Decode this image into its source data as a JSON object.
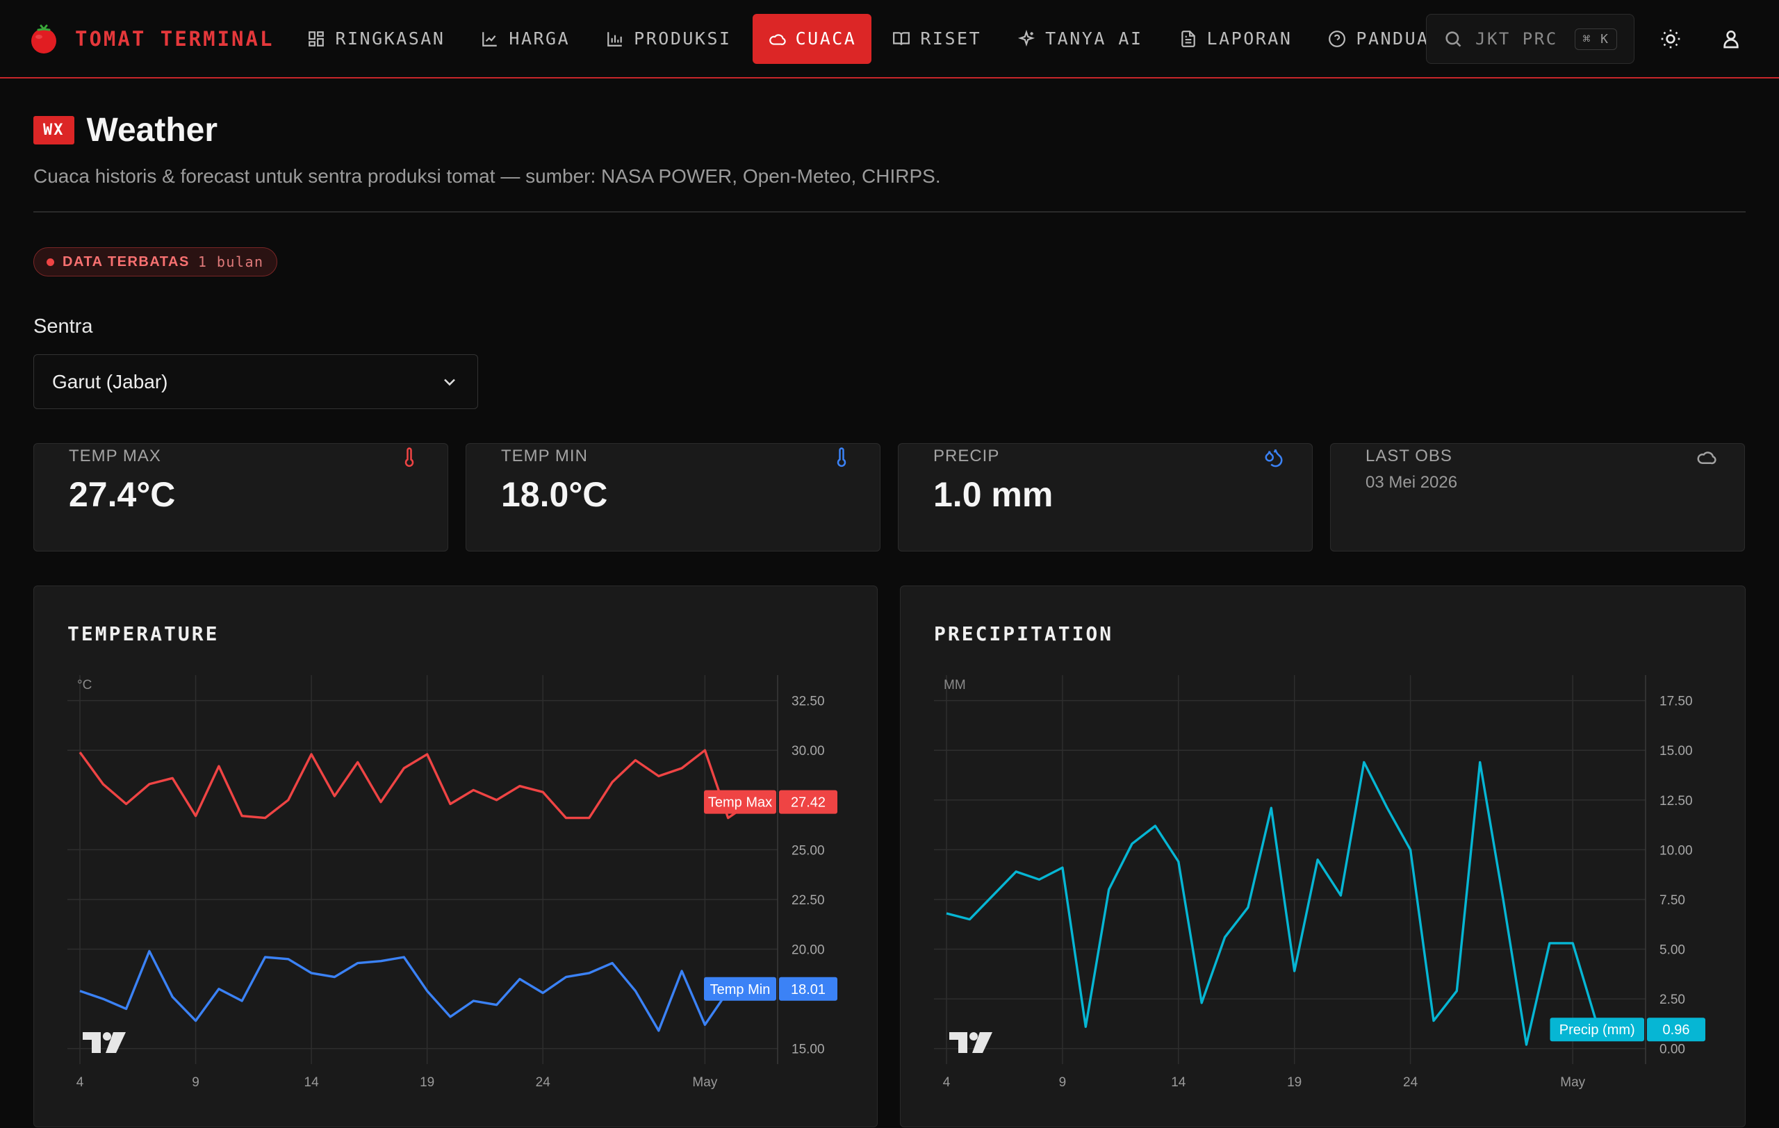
{
  "brand": {
    "name": "TOMAT TERMINAL"
  },
  "nav": [
    {
      "label": "RINGKASAN",
      "icon": "grid-icon"
    },
    {
      "label": "HARGA",
      "icon": "line-chart-icon"
    },
    {
      "label": "PRODUKSI",
      "icon": "bar-chart-icon"
    },
    {
      "label": "CUACA",
      "icon": "cloud-icon",
      "active": true
    },
    {
      "label": "RISET",
      "icon": "book-icon"
    },
    {
      "label": "TANYA AI",
      "icon": "sparkle-icon"
    },
    {
      "label": "LAPORAN",
      "icon": "document-icon"
    },
    {
      "label": "PANDUAN",
      "icon": "help-icon"
    }
  ],
  "search": {
    "text": "JKT PRC",
    "shortcut": "⌘ K"
  },
  "header": {
    "badge": "WX",
    "title": "Weather",
    "subtitle": "Cuaca historis & forecast untuk sentra produksi tomat — sumber: NASA POWER, Open-Meteo, CHIRPS."
  },
  "limit_badge": {
    "label": "DATA TERBATAS",
    "value": "1 bulan"
  },
  "sentra": {
    "label": "Sentra",
    "selected": "Garut (Jabar)"
  },
  "stats": [
    {
      "label": "TEMP MAX",
      "value": "27.4°C",
      "icon": "thermometer-icon",
      "color": "#ef4444"
    },
    {
      "label": "TEMP MIN",
      "value": "18.0°C",
      "icon": "thermometer-icon",
      "color": "#3b82f6"
    },
    {
      "label": "PRECIP",
      "value": "1.0 mm",
      "icon": "droplets-icon",
      "color": "#3b82f6"
    },
    {
      "label": "LAST OBS",
      "value": "03 Mei 2026",
      "icon": "cloud-icon",
      "color": "#a3a3a3"
    }
  ],
  "chart_data": [
    {
      "type": "line",
      "title": "TEMPERATURE",
      "ylabel": "°C",
      "ylim": [
        14.5,
        33.5
      ],
      "yticks": [
        "15.00",
        "20.00",
        "22.50",
        "25.00",
        "30.00",
        "32.50"
      ],
      "ytick_values": [
        15,
        20,
        22.5,
        25,
        30,
        32.5
      ],
      "xticks": [
        "4",
        "9",
        "14",
        "19",
        "24",
        "May"
      ],
      "xtick_days": [
        4,
        9,
        14,
        19,
        24,
        31
      ],
      "x_start_day": 4,
      "series": [
        {
          "name": "Temp Max",
          "color": "#ef4444",
          "last_label": "27.42",
          "values": [
            29.9,
            28.3,
            27.3,
            28.3,
            28.6,
            26.7,
            29.2,
            26.7,
            26.6,
            27.5,
            29.8,
            27.7,
            29.4,
            27.4,
            29.1,
            29.8,
            27.3,
            28.0,
            27.5,
            28.2,
            27.9,
            26.6,
            26.6,
            28.4,
            29.5,
            28.7,
            29.1,
            30.0,
            26.6,
            27.4
          ]
        },
        {
          "name": "Temp Min",
          "color": "#3b82f6",
          "last_label": "18.01",
          "values": [
            17.9,
            17.5,
            17.0,
            19.9,
            17.6,
            16.4,
            18.0,
            17.4,
            19.6,
            19.5,
            18.8,
            18.6,
            19.3,
            19.4,
            19.6,
            17.9,
            16.6,
            17.4,
            17.2,
            18.5,
            17.8,
            18.6,
            18.8,
            19.3,
            17.9,
            15.9,
            18.9,
            16.2,
            17.9,
            18.0
          ]
        }
      ]
    },
    {
      "type": "line",
      "title": "PRECIPITATION",
      "ylabel": "MM",
      "ylim": [
        -0.5,
        18.5
      ],
      "yticks": [
        "0.00",
        "2.50",
        "5.00",
        "7.50",
        "10.00",
        "12.50",
        "15.00",
        "17.50"
      ],
      "ytick_values": [
        0,
        2.5,
        5,
        7.5,
        10,
        12.5,
        15,
        17.5
      ],
      "xticks": [
        "4",
        "9",
        "14",
        "19",
        "24",
        "May"
      ],
      "xtick_days": [
        4,
        9,
        14,
        19,
        24,
        31
      ],
      "x_start_day": 4,
      "series": [
        {
          "name": "Precip (mm)",
          "color": "#06b6d4",
          "last_label": "0.96",
          "values": [
            6.8,
            6.5,
            7.7,
            8.9,
            8.5,
            9.1,
            1.1,
            8.0,
            10.3,
            11.2,
            9.4,
            2.3,
            5.6,
            7.1,
            12.1,
            3.9,
            9.5,
            7.7,
            14.4,
            12.1,
            10.0,
            1.4,
            2.9,
            14.4,
            7.5,
            0.2,
            5.3,
            5.3,
            1.4,
            0.96
          ]
        }
      ]
    }
  ]
}
